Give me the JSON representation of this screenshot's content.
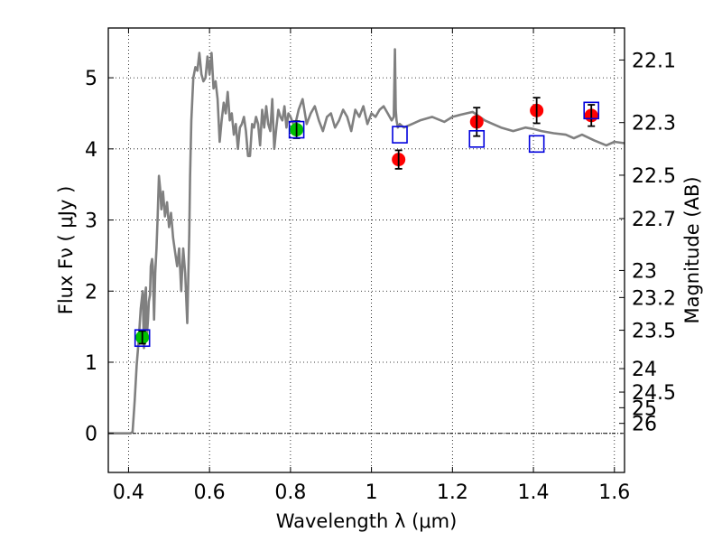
{
  "chart_data": {
    "type": "line",
    "xlabel": "Wavelength  λ (μm)",
    "ylabel": "Flux  Fν  ( μJy )",
    "ylabel_right": "Magnitude (AB)",
    "xlim": [
      0.35,
      1.625
    ],
    "ylim": [
      -0.55,
      5.7
    ],
    "grid": true,
    "x_ticks": [
      0.4,
      0.6,
      0.8,
      1.0,
      1.2,
      1.4,
      1.6
    ],
    "x_tick_labels": [
      "0.4",
      "0.6",
      "0.8",
      "1",
      "1.2",
      "1.4",
      "1.6"
    ],
    "y_ticks": [
      0,
      1,
      2,
      3,
      4,
      5
    ],
    "y_tick_labels": [
      "0",
      "1",
      "2",
      "3",
      "4",
      "5"
    ],
    "right_ticks": [
      {
        "label": "22.1",
        "flux": 5.25
      },
      {
        "label": "22.3",
        "flux": 4.37
      },
      {
        "label": "22.5",
        "flux": 3.63
      },
      {
        "label": "22.7",
        "flux": 3.02
      },
      {
        "label": "23",
        "flux": 2.29
      },
      {
        "label": "23.2",
        "flux": 1.91
      },
      {
        "label": "23.5",
        "flux": 1.45
      },
      {
        "label": "24",
        "flux": 0.91
      },
      {
        "label": "24.5",
        "flux": 0.58
      },
      {
        "label": "25",
        "flux": 0.36
      },
      {
        "label": "26",
        "flux": 0.14
      }
    ],
    "series": [
      {
        "kind": "model_sed",
        "color": "#808080",
        "x": [
          0.35,
          0.405,
          0.41,
          0.415,
          0.42,
          0.425,
          0.43,
          0.435,
          0.438,
          0.44,
          0.443,
          0.445,
          0.448,
          0.45,
          0.453,
          0.455,
          0.458,
          0.46,
          0.463,
          0.466,
          0.469,
          0.472,
          0.475,
          0.478,
          0.481,
          0.485,
          0.49,
          0.495,
          0.5,
          0.505,
          0.51,
          0.515,
          0.52,
          0.525,
          0.53,
          0.535,
          0.54,
          0.545,
          0.55,
          0.552,
          0.555,
          0.56,
          0.565,
          0.57,
          0.575,
          0.58,
          0.585,
          0.59,
          0.595,
          0.6,
          0.605,
          0.61,
          0.615,
          0.62,
          0.625,
          0.63,
          0.635,
          0.64,
          0.645,
          0.65,
          0.655,
          0.66,
          0.665,
          0.67,
          0.675,
          0.68,
          0.685,
          0.69,
          0.695,
          0.7,
          0.705,
          0.71,
          0.715,
          0.72,
          0.725,
          0.73,
          0.735,
          0.74,
          0.745,
          0.75,
          0.755,
          0.76,
          0.765,
          0.77,
          0.775,
          0.78,
          0.785,
          0.79,
          0.795,
          0.8,
          0.81,
          0.82,
          0.83,
          0.84,
          0.85,
          0.86,
          0.87,
          0.88,
          0.89,
          0.9,
          0.91,
          0.92,
          0.93,
          0.94,
          0.95,
          0.96,
          0.97,
          0.98,
          0.99,
          1.0,
          1.01,
          1.02,
          1.03,
          1.04,
          1.05,
          1.055,
          1.058,
          1.06,
          1.062,
          1.065,
          1.07,
          1.08,
          1.1,
          1.12,
          1.15,
          1.18,
          1.2,
          1.22,
          1.25,
          1.28,
          1.3,
          1.32,
          1.35,
          1.38,
          1.4,
          1.42,
          1.45,
          1.48,
          1.5,
          1.52,
          1.55,
          1.58,
          1.6,
          1.625
        ],
        "y": [
          0.0,
          0.0,
          0.02,
          0.45,
          0.95,
          1.3,
          1.75,
          2.0,
          1.2,
          1.9,
          2.05,
          1.35,
          1.6,
          1.85,
          1.95,
          2.35,
          2.45,
          2.35,
          1.6,
          2.25,
          2.6,
          3.05,
          3.62,
          3.45,
          3.15,
          3.4,
          3.05,
          3.25,
          2.9,
          3.1,
          2.75,
          2.55,
          2.35,
          2.6,
          2.0,
          2.6,
          2.25,
          1.55,
          2.8,
          3.6,
          4.4,
          5.0,
          5.15,
          5.1,
          5.35,
          5.05,
          4.95,
          5.0,
          5.3,
          5.05,
          5.35,
          4.85,
          4.95,
          4.7,
          4.1,
          4.4,
          4.65,
          4.5,
          4.8,
          4.4,
          4.5,
          4.2,
          4.35,
          4.0,
          4.3,
          4.35,
          4.45,
          4.25,
          3.9,
          3.9,
          4.35,
          4.3,
          4.45,
          4.35,
          4.05,
          4.55,
          4.3,
          4.6,
          4.35,
          4.25,
          4.7,
          4.0,
          4.3,
          4.55,
          4.45,
          4.4,
          4.6,
          4.3,
          4.5,
          4.45,
          4.3,
          4.55,
          4.7,
          4.35,
          4.5,
          4.6,
          4.4,
          4.25,
          4.45,
          4.5,
          4.3,
          4.4,
          4.55,
          4.45,
          4.25,
          4.55,
          4.45,
          4.6,
          4.35,
          4.5,
          4.45,
          4.55,
          4.6,
          4.5,
          4.4,
          4.45,
          5.4,
          4.55,
          4.4,
          4.3,
          4.35,
          4.3,
          4.35,
          4.4,
          4.45,
          4.38,
          4.45,
          4.48,
          4.52,
          4.4,
          4.35,
          4.3,
          4.25,
          4.3,
          4.28,
          4.25,
          4.22,
          4.2,
          4.15,
          4.2,
          4.12,
          4.05,
          4.1,
          4.08
        ]
      },
      {
        "kind": "observed",
        "marker": "circle",
        "color_fill": "#ff0000",
        "points": [
          {
            "x": 1.067,
            "y": 3.85,
            "err": 0.13
          },
          {
            "x": 1.26,
            "y": 4.38,
            "err": 0.2
          },
          {
            "x": 1.408,
            "y": 4.54,
            "err": 0.18
          },
          {
            "x": 1.543,
            "y": 4.47,
            "err": 0.15
          }
        ]
      },
      {
        "kind": "observed",
        "marker": "circle",
        "color_fill": "#00c000",
        "points": [
          {
            "x": 0.434,
            "y": 1.35,
            "err": 0.09
          },
          {
            "x": 0.815,
            "y": 4.27,
            "err": 0.12
          }
        ]
      },
      {
        "kind": "model_photometry",
        "marker": "square",
        "color": "#0000dd",
        "points": [
          {
            "x": 0.434,
            "y": 1.34
          },
          {
            "x": 0.815,
            "y": 4.27
          },
          {
            "x": 1.07,
            "y": 4.2
          },
          {
            "x": 1.26,
            "y": 4.14
          },
          {
            "x": 1.408,
            "y": 4.07
          },
          {
            "x": 1.543,
            "y": 4.54
          }
        ]
      }
    ]
  }
}
